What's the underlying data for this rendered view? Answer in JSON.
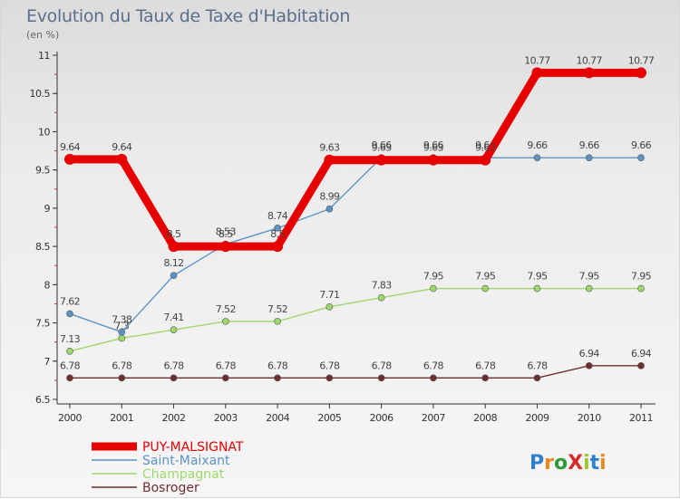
{
  "title": "Evolution du Taux de Taxe d'Habitation",
  "subtitle": "(en %)",
  "logo": "ProXiti",
  "chart_data": {
    "type": "line",
    "title": "Evolution du Taux de Taxe d'Habitation",
    "subtitle": "(en %)",
    "xlabel": "",
    "ylabel": "",
    "categories": [
      "2000",
      "2001",
      "2002",
      "2003",
      "2004",
      "2005",
      "2006",
      "2007",
      "2008",
      "2009",
      "2010",
      "2011"
    ],
    "ylim": [
      6.5,
      11
    ],
    "yticks": [
      6.5,
      7,
      7.5,
      8,
      8.5,
      9,
      9.5,
      10,
      10.5,
      11
    ],
    "ytick_labels": [
      "6.5",
      "7",
      "7.5",
      "8",
      "8.5",
      "9",
      "9.5",
      "10",
      "10.5",
      "11"
    ],
    "grid": false,
    "legend_position": "bottom-left",
    "series": [
      {
        "name": "PUY-MALSIGNAT",
        "color": "#e60000",
        "values": [
          9.64,
          9.64,
          8.5,
          8.5,
          8.5,
          9.63,
          9.63,
          9.63,
          9.63,
          10.77,
          10.77,
          10.77
        ],
        "labels": [
          "9.64",
          "9.64",
          "8.5",
          "8.5",
          "8.5",
          "9.63",
          "9.63",
          "9.63",
          "9.63",
          "10.77",
          "10.77",
          "10.77"
        ]
      },
      {
        "name": "Saint-Maixant",
        "color": "#5b93c7",
        "values": [
          7.62,
          7.38,
          8.12,
          8.53,
          8.74,
          8.99,
          9.66,
          9.66,
          9.66,
          9.66,
          9.66,
          9.66
        ],
        "labels": [
          "7.62",
          "7.38",
          "8.12",
          "8.53",
          "8.74",
          "8.99",
          "9.66",
          "9.66",
          "9.66",
          "9.66",
          "9.66",
          "9.66"
        ]
      },
      {
        "name": "Champagnat",
        "color": "#9ed86a",
        "values": [
          7.13,
          7.3,
          7.41,
          7.52,
          7.52,
          7.71,
          7.83,
          7.95,
          7.95,
          7.95,
          7.95,
          7.95
        ],
        "labels": [
          "7.13",
          "7.3",
          "7.41",
          "7.52",
          "7.52",
          "7.71",
          "7.83",
          "7.95",
          "7.95",
          "7.95",
          "7.95",
          "7.95"
        ]
      },
      {
        "name": "Bosroger",
        "color": "#6e2e2e",
        "values": [
          6.78,
          6.78,
          6.78,
          6.78,
          6.78,
          6.78,
          6.78,
          6.78,
          6.78,
          6.78,
          6.94,
          6.94
        ],
        "labels": [
          "6.78",
          "6.78",
          "6.78",
          "6.78",
          "6.78",
          "6.78",
          "6.78",
          "6.78",
          "6.78",
          "6.78",
          "6.94",
          "6.94"
        ]
      }
    ]
  }
}
